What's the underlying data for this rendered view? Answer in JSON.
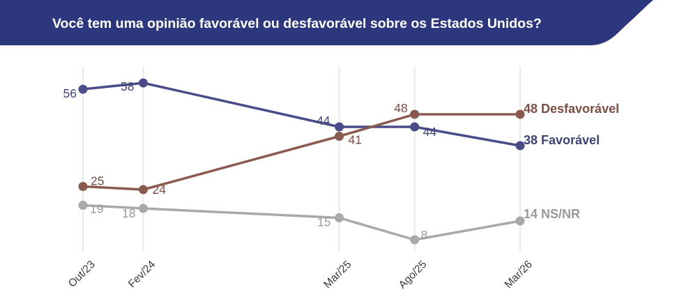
{
  "header": {
    "title": "Você tem uma opinião favorável ou desfavorável sobre os Estados Unidos?",
    "bg_color": "#2d377d",
    "text_color": "#ffffff"
  },
  "chart_data": {
    "type": "line",
    "title": "Você tem uma opinião favorável ou desfavorável sobre os Estados Unidos?",
    "categories": [
      "Out/23",
      "Fev/24",
      "Mar/25",
      "Ago/25",
      "Mar/26"
    ],
    "x_month_offsets": [
      0,
      4,
      17,
      22,
      29
    ],
    "series": [
      {
        "name": "Favorável",
        "values": [
          56,
          58,
          44,
          44,
          38
        ],
        "color": "#4a4c89",
        "label_color": "#3f4276",
        "end_label": "38 Favorável"
      },
      {
        "name": "Desfavorável",
        "values": [
          25,
          24,
          41,
          48,
          48
        ],
        "color": "#8b5a4e",
        "label_color": "#7d4e43",
        "end_label": "48 Desfavorável"
      },
      {
        "name": "NS/NR",
        "values": [
          19,
          18,
          15,
          8,
          14
        ],
        "color": "#a9a9a9",
        "label_color": "#999999",
        "end_label": "14 NS/NR"
      }
    ],
    "ylim": [
      0,
      65
    ],
    "xlabel": "",
    "ylabel": "",
    "grid": "vertical-only",
    "gridline_color": "#e9e9e9",
    "tick_label_color": "#3a3a3a",
    "value_labels_shown": true,
    "legend_position": "inline-end-of-line"
  }
}
